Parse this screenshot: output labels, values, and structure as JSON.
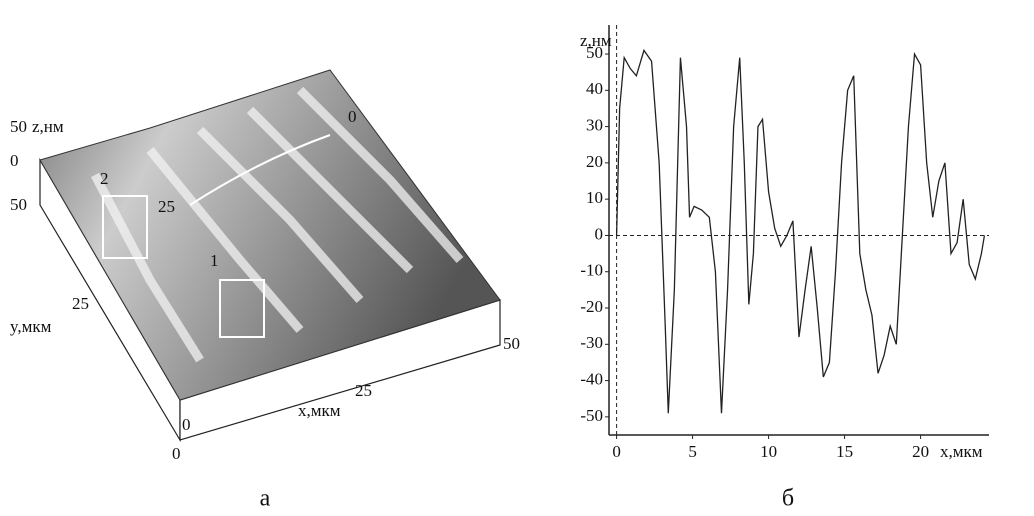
{
  "chart_data": [
    {
      "type": "surface",
      "zlabel": "z,нм",
      "ylabel": "y,мкм",
      "xlabel": "x,мкм",
      "zticks": [
        50,
        0
      ],
      "yticks": [
        50,
        25,
        0
      ],
      "xticks": [
        0,
        25,
        50
      ],
      "profile_ticks": [
        0,
        25
      ],
      "regions": [
        "1",
        "2"
      ],
      "caption": "а"
    },
    {
      "type": "line",
      "ylabel": "z,нм",
      "xlabel": "x,мкм",
      "caption": "б",
      "xlim": [
        -0.5,
        24.5
      ],
      "ylim": [
        -55,
        58
      ],
      "xticks": [
        0,
        5,
        10,
        15,
        20
      ],
      "yticks": [
        -50,
        -40,
        -30,
        -20,
        -10,
        0,
        10,
        20,
        30,
        40,
        50
      ],
      "hline": 0,
      "vline": 0,
      "x": [
        0,
        0.2,
        0.5,
        0.9,
        1.3,
        1.8,
        2.3,
        2.8,
        3.2,
        3.4,
        3.8,
        4.2,
        4.6,
        4.8,
        5.1,
        5.6,
        6.1,
        6.5,
        6.9,
        7.3,
        7.7,
        8.1,
        8.4,
        8.7,
        9.0,
        9.3,
        9.6,
        10.0,
        10.4,
        10.8,
        11.2,
        11.6,
        12.0,
        12.4,
        12.8,
        13.2,
        13.6,
        14.0,
        14.4,
        14.8,
        15.2,
        15.6,
        16.0,
        16.4,
        16.8,
        17.2,
        17.6,
        18.0,
        18.4,
        18.8,
        19.2,
        19.6,
        20.0,
        20.4,
        20.8,
        21.2,
        21.6,
        22.0,
        22.4,
        22.8,
        23.2,
        23.6,
        24.0,
        24.2
      ],
      "series": [
        {
          "color": "#222222",
          "values": [
            0,
            35,
            49,
            46,
            44,
            51,
            48,
            20,
            -25,
            -49,
            -15,
            49,
            30,
            5,
            8,
            7,
            5,
            -10,
            -49,
            -15,
            30,
            49,
            20,
            -19,
            -5,
            30,
            32,
            12,
            2,
            -3,
            0,
            4,
            -28,
            -15,
            -3,
            -20,
            -39,
            -35,
            -10,
            20,
            40,
            44,
            -5,
            -15,
            -22,
            -38,
            -33,
            -25,
            -30,
            0,
            30,
            50,
            47,
            20,
            5,
            15,
            20,
            -5,
            -2,
            10,
            -8,
            -12,
            -5,
            0
          ]
        }
      ]
    }
  ]
}
